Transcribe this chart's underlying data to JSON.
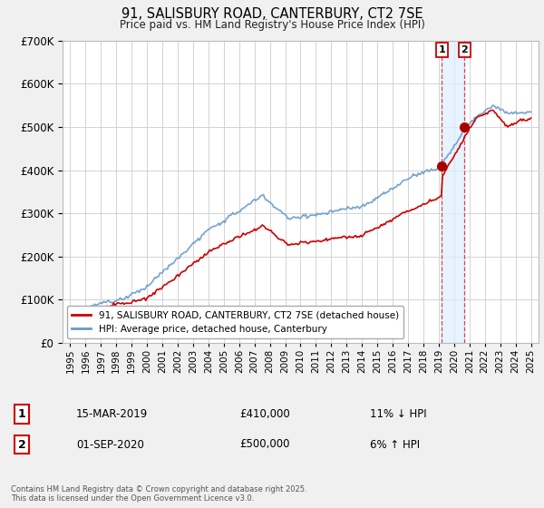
{
  "title_line1": "91, SALISBURY ROAD, CANTERBURY, CT2 7SE",
  "title_line2": "Price paid vs. HM Land Registry's House Price Index (HPI)",
  "legend_label1": "91, SALISBURY ROAD, CANTERBURY, CT2 7SE (detached house)",
  "legend_label2": "HPI: Average price, detached house, Canterbury",
  "footer": "Contains HM Land Registry data © Crown copyright and database right 2025.\nThis data is licensed under the Open Government Licence v3.0.",
  "annotation1_date": "15-MAR-2019",
  "annotation1_price": "£410,000",
  "annotation1_hpi": "11% ↓ HPI",
  "annotation2_date": "01-SEP-2020",
  "annotation2_price": "£500,000",
  "annotation2_hpi": "6% ↑ HPI",
  "sale1_year": 2019.21,
  "sale1_value": 410000,
  "sale2_year": 2020.67,
  "sale2_value": 500000,
  "line_color_red": "#cc0000",
  "line_color_blue": "#6699cc",
  "vline_color": "#dd4444",
  "shade_color": "#ddeeff",
  "marker_color_red": "#aa0000",
  "ylim_min": 0,
  "ylim_max": 700000,
  "xlim_min": 1994.5,
  "xlim_max": 2025.5,
  "background_color": "#f0f0f0",
  "plot_bg_color": "#ffffff",
  "grid_color": "#cccccc"
}
